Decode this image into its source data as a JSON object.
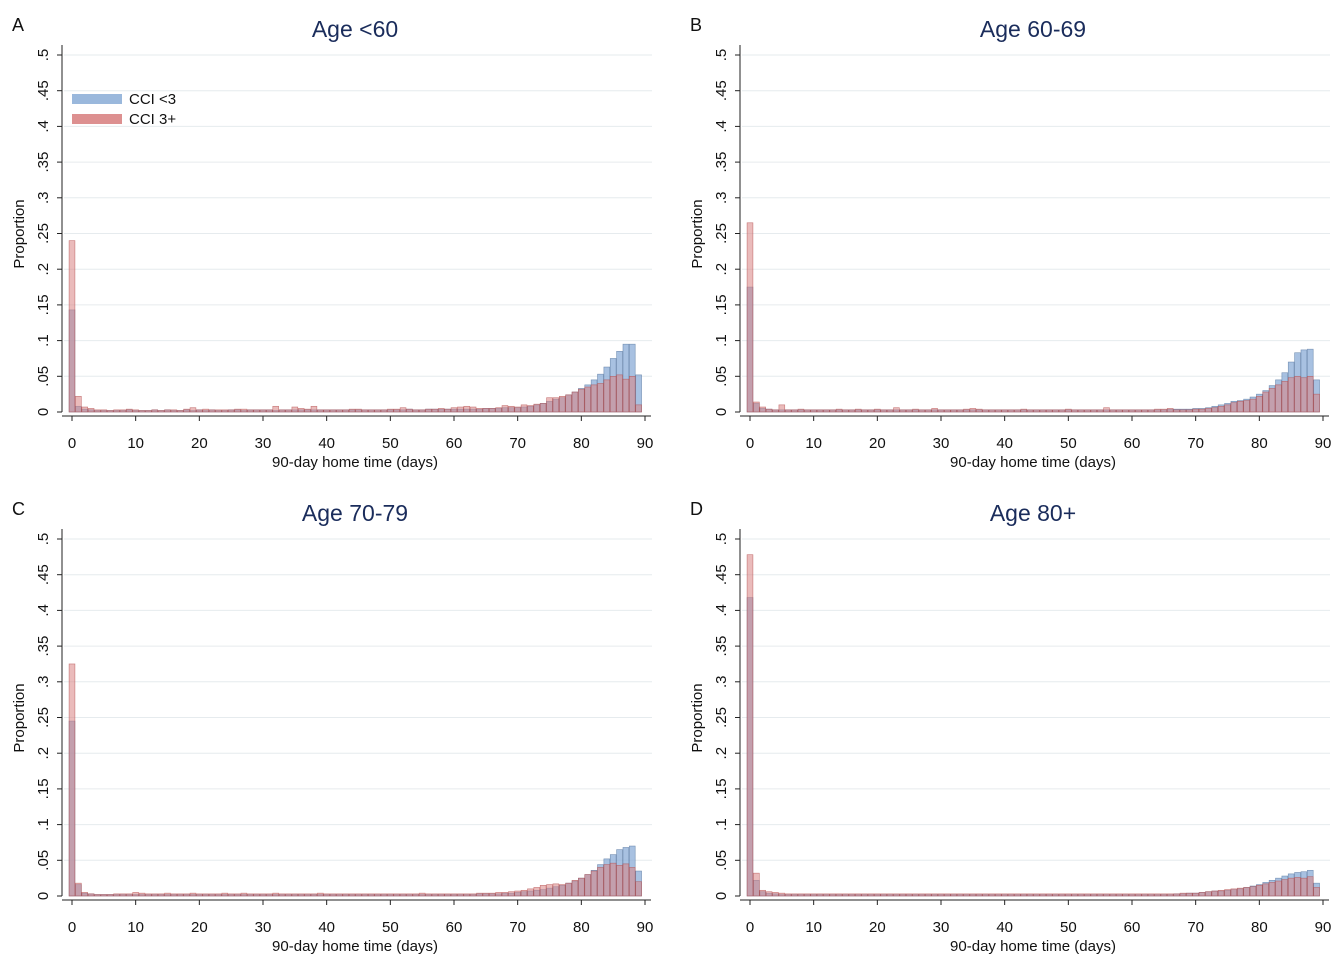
{
  "colors": {
    "blue_fill": "#8fb0d8",
    "blue_stroke": "#4f6f9a",
    "red_fill": "#d98484",
    "red_stroke": "#b44a4a",
    "title": "#1a2c5b",
    "grid": "#e6ebee"
  },
  "chart_data": [
    {
      "type": "bar",
      "panel": "A",
      "title": "Age <60",
      "xlabel": "90-day home time (days)",
      "ylabel": "Proportion",
      "xlim": [
        0,
        90
      ],
      "ylim": [
        0,
        0.5
      ],
      "xticks": [
        "0",
        "10",
        "20",
        "30",
        "40",
        "50",
        "60",
        "70",
        "80",
        "90"
      ],
      "yticks": [
        "0",
        ".05",
        ".1",
        ".15",
        ".2",
        ".25",
        ".3",
        ".35",
        ".4",
        ".45",
        ".5"
      ],
      "grid": true,
      "legend": {
        "position": "top-left",
        "entries": [
          "CCI <3",
          "CCI 3+"
        ]
      },
      "series": [
        {
          "name": "CCI <3",
          "values": [
            0.143,
            0.008,
            0.004,
            0.003,
            0.002,
            0.002,
            0.002,
            0.002,
            0.002,
            0.003,
            0.002,
            0.002,
            0.002,
            0.003,
            0.002,
            0.003,
            0.002,
            0.002,
            0.003,
            0.002,
            0.003,
            0.002,
            0.003,
            0.002,
            0.002,
            0.003,
            0.003,
            0.002,
            0.003,
            0.003,
            0.003,
            0.003,
            0.002,
            0.003,
            0.003,
            0.003,
            0.003,
            0.003,
            0.003,
            0.003,
            0.003,
            0.003,
            0.003,
            0.003,
            0.003,
            0.003,
            0.003,
            0.003,
            0.003,
            0.003,
            0.003,
            0.003,
            0.003,
            0.004,
            0.003,
            0.003,
            0.004,
            0.004,
            0.004,
            0.004,
            0.004,
            0.004,
            0.004,
            0.004,
            0.004,
            0.005,
            0.005,
            0.005,
            0.006,
            0.006,
            0.006,
            0.007,
            0.008,
            0.01,
            0.012,
            0.015,
            0.018,
            0.02,
            0.024,
            0.028,
            0.033,
            0.038,
            0.045,
            0.053,
            0.063,
            0.075,
            0.085,
            0.095,
            0.095,
            0.052
          ]
        },
        {
          "name": "CCI 3+",
          "values": [
            0.24,
            0.022,
            0.007,
            0.005,
            0.003,
            0.003,
            0.002,
            0.003,
            0.003,
            0.004,
            0.003,
            0.002,
            0.002,
            0.003,
            0.002,
            0.003,
            0.003,
            0.002,
            0.004,
            0.006,
            0.003,
            0.004,
            0.003,
            0.003,
            0.003,
            0.003,
            0.004,
            0.004,
            0.003,
            0.003,
            0.003,
            0.003,
            0.008,
            0.003,
            0.003,
            0.007,
            0.005,
            0.004,
            0.008,
            0.003,
            0.003,
            0.003,
            0.003,
            0.003,
            0.004,
            0.004,
            0.003,
            0.003,
            0.003,
            0.003,
            0.004,
            0.004,
            0.006,
            0.004,
            0.003,
            0.003,
            0.004,
            0.004,
            0.005,
            0.004,
            0.006,
            0.007,
            0.008,
            0.007,
            0.005,
            0.005,
            0.005,
            0.006,
            0.009,
            0.008,
            0.007,
            0.01,
            0.009,
            0.011,
            0.012,
            0.02,
            0.02,
            0.022,
            0.024,
            0.028,
            0.032,
            0.035,
            0.038,
            0.04,
            0.045,
            0.05,
            0.052,
            0.046,
            0.05,
            0.01
          ]
        }
      ]
    },
    {
      "type": "bar",
      "panel": "B",
      "title": "Age 60-69",
      "xlabel": "90-day home time (days)",
      "ylabel": "Proportion",
      "xlim": [
        0,
        90
      ],
      "ylim": [
        0,
        0.5
      ],
      "xticks": [
        "0",
        "10",
        "20",
        "30",
        "40",
        "50",
        "60",
        "70",
        "80",
        "90"
      ],
      "yticks": [
        "0",
        ".05",
        ".1",
        ".15",
        ".2",
        ".25",
        ".3",
        ".35",
        ".4",
        ".45",
        ".5"
      ],
      "grid": true,
      "series": [
        {
          "name": "CCI <3",
          "values": [
            0.175,
            0.012,
            0.005,
            0.004,
            0.003,
            0.003,
            0.003,
            0.003,
            0.003,
            0.003,
            0.003,
            0.003,
            0.003,
            0.003,
            0.003,
            0.003,
            0.003,
            0.003,
            0.003,
            0.003,
            0.003,
            0.003,
            0.003,
            0.003,
            0.003,
            0.003,
            0.003,
            0.003,
            0.003,
            0.003,
            0.003,
            0.003,
            0.003,
            0.003,
            0.003,
            0.003,
            0.003,
            0.003,
            0.003,
            0.003,
            0.003,
            0.003,
            0.003,
            0.003,
            0.003,
            0.003,
            0.003,
            0.003,
            0.003,
            0.003,
            0.003,
            0.003,
            0.003,
            0.003,
            0.003,
            0.003,
            0.003,
            0.003,
            0.003,
            0.003,
            0.003,
            0.003,
            0.003,
            0.003,
            0.003,
            0.003,
            0.004,
            0.004,
            0.004,
            0.004,
            0.005,
            0.005,
            0.006,
            0.008,
            0.01,
            0.012,
            0.015,
            0.016,
            0.018,
            0.021,
            0.025,
            0.03,
            0.037,
            0.045,
            0.055,
            0.07,
            0.083,
            0.087,
            0.088,
            0.045
          ]
        },
        {
          "name": "CCI 3+",
          "values": [
            0.265,
            0.014,
            0.007,
            0.004,
            0.003,
            0.01,
            0.003,
            0.003,
            0.004,
            0.003,
            0.003,
            0.003,
            0.003,
            0.003,
            0.004,
            0.003,
            0.003,
            0.004,
            0.003,
            0.003,
            0.004,
            0.003,
            0.003,
            0.006,
            0.003,
            0.003,
            0.004,
            0.003,
            0.003,
            0.005,
            0.003,
            0.003,
            0.003,
            0.003,
            0.004,
            0.005,
            0.004,
            0.003,
            0.003,
            0.003,
            0.003,
            0.003,
            0.003,
            0.004,
            0.003,
            0.003,
            0.003,
            0.003,
            0.003,
            0.003,
            0.004,
            0.003,
            0.003,
            0.003,
            0.003,
            0.003,
            0.006,
            0.003,
            0.003,
            0.003,
            0.003,
            0.003,
            0.003,
            0.003,
            0.004,
            0.004,
            0.005,
            0.003,
            0.003,
            0.003,
            0.004,
            0.004,
            0.005,
            0.006,
            0.008,
            0.01,
            0.013,
            0.015,
            0.016,
            0.018,
            0.022,
            0.028,
            0.033,
            0.038,
            0.043,
            0.048,
            0.05,
            0.048,
            0.05,
            0.025
          ]
        }
      ]
    },
    {
      "type": "bar",
      "panel": "C",
      "title": "Age 70-79",
      "xlabel": "90-day home time (days)",
      "ylabel": "Proportion",
      "xlim": [
        0,
        90
      ],
      "ylim": [
        0,
        0.5
      ],
      "xticks": [
        "0",
        "10",
        "20",
        "30",
        "40",
        "50",
        "60",
        "70",
        "80",
        "90"
      ],
      "yticks": [
        "0",
        ".05",
        ".1",
        ".15",
        ".2",
        ".25",
        ".3",
        ".35",
        ".4",
        ".45",
        ".5"
      ],
      "grid": true,
      "series": [
        {
          "name": "CCI <3",
          "values": [
            0.245,
            0.016,
            0.004,
            0.003,
            0.002,
            0.002,
            0.002,
            0.002,
            0.002,
            0.002,
            0.002,
            0.002,
            0.002,
            0.002,
            0.002,
            0.002,
            0.002,
            0.002,
            0.002,
            0.002,
            0.002,
            0.002,
            0.002,
            0.002,
            0.002,
            0.002,
            0.002,
            0.002,
            0.002,
            0.002,
            0.002,
            0.002,
            0.002,
            0.002,
            0.002,
            0.002,
            0.002,
            0.002,
            0.002,
            0.002,
            0.002,
            0.002,
            0.002,
            0.002,
            0.002,
            0.002,
            0.002,
            0.002,
            0.002,
            0.002,
            0.002,
            0.002,
            0.002,
            0.002,
            0.002,
            0.002,
            0.002,
            0.002,
            0.002,
            0.002,
            0.002,
            0.002,
            0.002,
            0.002,
            0.003,
            0.003,
            0.003,
            0.003,
            0.004,
            0.004,
            0.005,
            0.006,
            0.007,
            0.008,
            0.009,
            0.011,
            0.013,
            0.015,
            0.018,
            0.021,
            0.025,
            0.03,
            0.036,
            0.044,
            0.052,
            0.058,
            0.065,
            0.068,
            0.07,
            0.035
          ]
        },
        {
          "name": "CCI 3+",
          "values": [
            0.325,
            0.018,
            0.005,
            0.003,
            0.002,
            0.002,
            0.002,
            0.003,
            0.003,
            0.003,
            0.005,
            0.004,
            0.003,
            0.003,
            0.003,
            0.004,
            0.003,
            0.003,
            0.003,
            0.004,
            0.003,
            0.003,
            0.003,
            0.003,
            0.004,
            0.003,
            0.003,
            0.004,
            0.003,
            0.003,
            0.003,
            0.003,
            0.004,
            0.003,
            0.003,
            0.003,
            0.003,
            0.003,
            0.003,
            0.004,
            0.003,
            0.003,
            0.003,
            0.003,
            0.003,
            0.003,
            0.003,
            0.003,
            0.003,
            0.003,
            0.003,
            0.003,
            0.003,
            0.003,
            0.003,
            0.004,
            0.003,
            0.003,
            0.003,
            0.003,
            0.003,
            0.003,
            0.003,
            0.003,
            0.004,
            0.004,
            0.004,
            0.005,
            0.005,
            0.006,
            0.007,
            0.008,
            0.01,
            0.012,
            0.015,
            0.016,
            0.017,
            0.016,
            0.018,
            0.022,
            0.025,
            0.03,
            0.035,
            0.04,
            0.044,
            0.046,
            0.043,
            0.045,
            0.04,
            0.02
          ]
        }
      ]
    },
    {
      "type": "bar",
      "panel": "D",
      "title": "Age 80+",
      "xlabel": "90-day home time (days)",
      "ylabel": "Proportion",
      "xlim": [
        0,
        90
      ],
      "ylim": [
        0,
        0.5
      ],
      "xticks": [
        "0",
        "10",
        "20",
        "30",
        "40",
        "50",
        "60",
        "70",
        "80",
        "90"
      ],
      "yticks": [
        "0",
        ".05",
        ".1",
        ".15",
        ".2",
        ".25",
        ".3",
        ".35",
        ".4",
        ".45",
        ".5"
      ],
      "grid": true,
      "series": [
        {
          "name": "CCI <3",
          "values": [
            0.418,
            0.022,
            0.006,
            0.004,
            0.003,
            0.002,
            0.002,
            0.002,
            0.002,
            0.002,
            0.002,
            0.002,
            0.002,
            0.002,
            0.002,
            0.002,
            0.002,
            0.002,
            0.002,
            0.002,
            0.002,
            0.002,
            0.002,
            0.002,
            0.002,
            0.002,
            0.002,
            0.002,
            0.002,
            0.002,
            0.002,
            0.002,
            0.002,
            0.002,
            0.002,
            0.002,
            0.002,
            0.002,
            0.002,
            0.002,
            0.002,
            0.002,
            0.002,
            0.002,
            0.002,
            0.002,
            0.002,
            0.002,
            0.002,
            0.002,
            0.002,
            0.002,
            0.002,
            0.002,
            0.002,
            0.002,
            0.002,
            0.002,
            0.002,
            0.002,
            0.002,
            0.002,
            0.002,
            0.002,
            0.002,
            0.002,
            0.002,
            0.003,
            0.003,
            0.004,
            0.004,
            0.005,
            0.006,
            0.007,
            0.007,
            0.008,
            0.009,
            0.01,
            0.012,
            0.014,
            0.016,
            0.019,
            0.022,
            0.025,
            0.028,
            0.031,
            0.033,
            0.034,
            0.036,
            0.018
          ]
        },
        {
          "name": "CCI 3+",
          "values": [
            0.478,
            0.032,
            0.008,
            0.006,
            0.005,
            0.004,
            0.003,
            0.003,
            0.003,
            0.003,
            0.003,
            0.003,
            0.003,
            0.003,
            0.003,
            0.003,
            0.003,
            0.003,
            0.003,
            0.003,
            0.003,
            0.003,
            0.003,
            0.003,
            0.003,
            0.003,
            0.003,
            0.003,
            0.003,
            0.003,
            0.003,
            0.003,
            0.003,
            0.003,
            0.003,
            0.003,
            0.003,
            0.003,
            0.003,
            0.003,
            0.003,
            0.003,
            0.003,
            0.003,
            0.003,
            0.003,
            0.003,
            0.003,
            0.003,
            0.003,
            0.003,
            0.003,
            0.003,
            0.003,
            0.003,
            0.003,
            0.003,
            0.003,
            0.003,
            0.003,
            0.003,
            0.003,
            0.003,
            0.003,
            0.003,
            0.003,
            0.003,
            0.003,
            0.004,
            0.004,
            0.004,
            0.005,
            0.006,
            0.007,
            0.008,
            0.009,
            0.01,
            0.011,
            0.012,
            0.013,
            0.015,
            0.017,
            0.019,
            0.021,
            0.023,
            0.025,
            0.026,
            0.025,
            0.027,
            0.012
          ]
        }
      ]
    }
  ]
}
